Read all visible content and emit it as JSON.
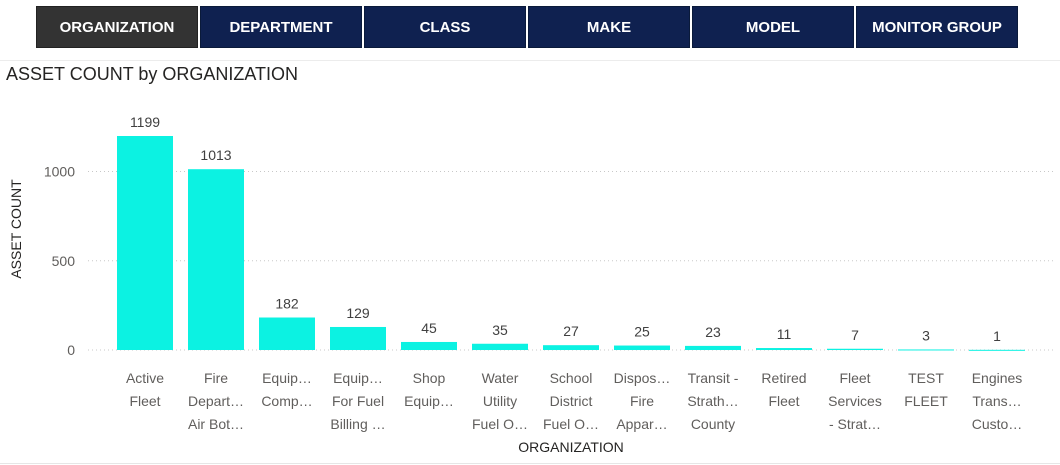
{
  "tabs": [
    {
      "label": "ORGANIZATION",
      "active": true
    },
    {
      "label": "DEPARTMENT",
      "active": false
    },
    {
      "label": "CLASS",
      "active": false
    },
    {
      "label": "MAKE",
      "active": false
    },
    {
      "label": "MODEL",
      "active": false
    },
    {
      "label": "MONITOR GROUP",
      "active": false
    }
  ],
  "colors": {
    "bar": "#0CF2E2",
    "tab_bg": "#0f2150",
    "tab_active_bg": "#333333",
    "grid": "#c8c8c8"
  },
  "chart_data": {
    "type": "bar",
    "title": "ASSET COUNT by ORGANIZATION",
    "xlabel": "ORGANIZATION",
    "ylabel": "ASSET COUNT",
    "ylim": [
      0,
      1199
    ],
    "yticks": [
      0,
      500,
      1000
    ],
    "grid": true,
    "categories": [
      [
        "Active",
        "Fleet"
      ],
      [
        "Fire",
        "Depart…",
        "Air Bot…"
      ],
      [
        "Equip…",
        "Comp…"
      ],
      [
        "Equip…",
        "For Fuel",
        "Billing …"
      ],
      [
        "Shop",
        "Equip…"
      ],
      [
        "Water",
        "Utility",
        "Fuel O…"
      ],
      [
        "School",
        "District",
        "Fuel O…"
      ],
      [
        "Dispos…",
        "Fire",
        "Appar…"
      ],
      [
        "Transit -",
        "Strath…",
        "County"
      ],
      [
        "Retired",
        "Fleet"
      ],
      [
        "Fleet",
        "Services",
        "- Strat…"
      ],
      [
        "TEST",
        "FLEET"
      ],
      [
        "Engines",
        "Trans…",
        "Custo…"
      ]
    ],
    "values": [
      1199,
      1013,
      182,
      129,
      45,
      35,
      27,
      25,
      23,
      11,
      7,
      3,
      1
    ]
  }
}
